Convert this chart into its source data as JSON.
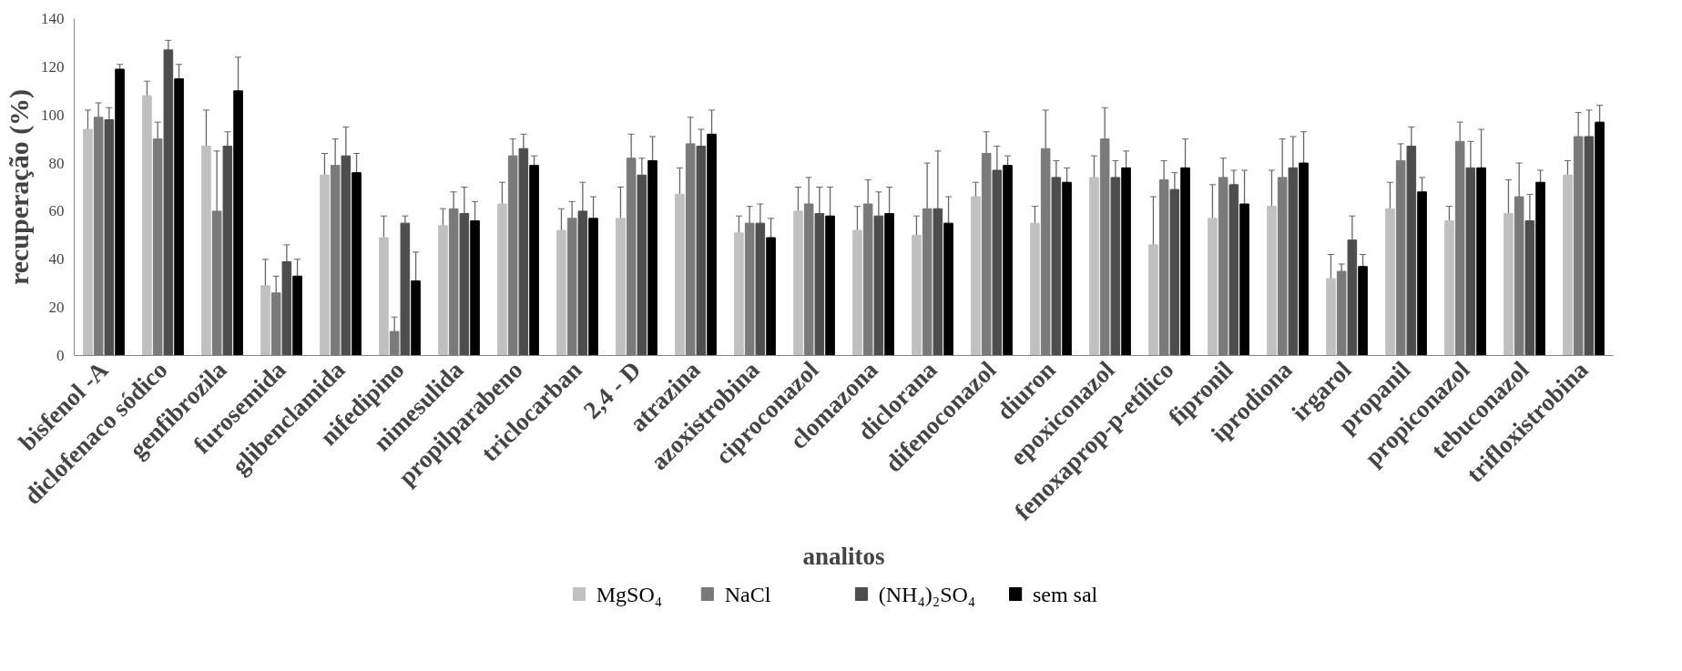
{
  "chart_data": {
    "type": "bar",
    "xlabel": "analitos",
    "ylabel": "recuperação (%)",
    "categories": [
      "bisfenol -A",
      "diclofenaco sódico",
      "genfibrozila",
      "furosemida",
      "glibenclamida",
      "nifedipino",
      "nimesulida",
      "propilparabeno",
      "triclocarban",
      "2,4 - D",
      "atrazina",
      "azoxistrobina",
      "ciproconazol",
      "clomazona",
      "diclorana",
      "difenoconazol",
      "diuron",
      "epoxiconazol",
      "fenoxaprop-p-etílico",
      "fipronil",
      "iprodiona",
      "irgarol",
      "propanil",
      "propiconazol",
      "tebuconazol",
      "trifloxistrobina"
    ],
    "series": [
      {
        "name": "MgSO₄",
        "color": "#c0c0c0",
        "values": [
          94,
          108,
          87,
          29,
          75,
          49,
          54,
          63,
          52,
          57,
          67,
          51,
          60,
          52,
          50,
          66,
          55,
          74,
          46,
          57,
          62,
          32,
          61,
          56,
          59,
          75
        ],
        "errors": [
          8,
          6,
          15,
          11,
          9,
          9,
          7,
          9,
          9,
          13,
          11,
          7,
          10,
          10,
          8,
          6,
          7,
          9,
          20,
          14,
          15,
          10,
          11,
          6,
          14,
          6
        ]
      },
      {
        "name": "NaCl",
        "color": "#7a7a7a",
        "values": [
          99,
          90,
          60,
          26,
          79,
          10,
          61,
          83,
          57,
          82,
          88,
          55,
          63,
          63,
          61,
          84,
          86,
          90,
          73,
          74,
          74,
          35,
          81,
          89,
          66,
          91
        ],
        "errors": [
          6,
          7,
          25,
          7,
          11,
          6,
          7,
          7,
          7,
          10,
          11,
          7,
          11,
          10,
          19,
          9,
          16,
          13,
          8,
          8,
          16,
          3,
          7,
          8,
          14,
          10
        ]
      },
      {
        "name": "(NH₄)₂SO₄",
        "color": "#4d4d4d",
        "values": [
          98,
          127,
          87,
          39,
          83,
          55,
          59,
          86,
          60,
          75,
          87,
          55,
          59,
          58,
          61,
          77,
          74,
          74,
          69,
          71,
          78,
          48,
          87,
          78,
          56,
          91
        ],
        "errors": [
          5,
          4,
          6,
          7,
          12,
          3,
          11,
          6,
          12,
          7,
          7,
          8,
          11,
          10,
          24,
          10,
          7,
          7,
          7,
          6,
          13,
          10,
          8,
          11,
          11,
          11
        ]
      },
      {
        "name": "sem sal",
        "color": "#000000",
        "values": [
          119,
          115,
          110,
          33,
          76,
          31,
          56,
          79,
          57,
          81,
          92,
          49,
          58,
          59,
          55,
          79,
          72,
          78,
          78,
          63,
          80,
          37,
          68,
          78,
          72,
          97
        ],
        "errors": [
          2,
          6,
          14,
          7,
          8,
          12,
          8,
          4,
          9,
          10,
          10,
          8,
          12,
          11,
          11,
          4,
          6,
          7,
          12,
          14,
          13,
          5,
          6,
          16,
          5,
          7
        ]
      }
    ],
    "ylim": [
      0,
      140
    ],
    "yticks": [
      0,
      20,
      40,
      60,
      80,
      100,
      120,
      140
    ],
    "grid": false,
    "legend": "bottom"
  }
}
